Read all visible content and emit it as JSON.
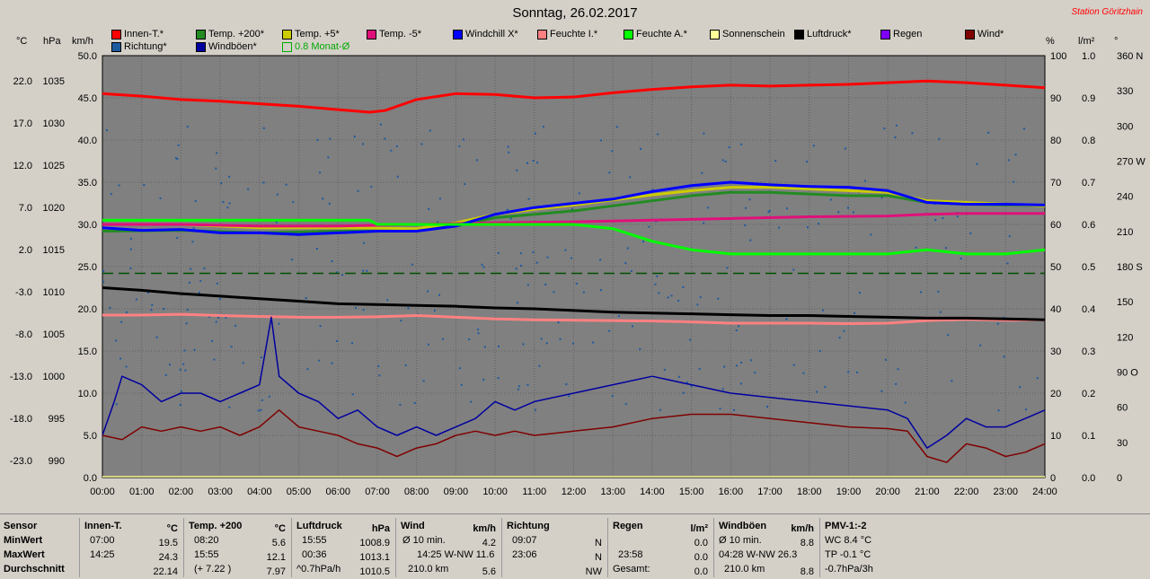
{
  "title": "Sonntag, 26.02.2017",
  "station": "Station Göritzhain",
  "units": {
    "c": "°C",
    "hpa": "hPa",
    "kmh": "km/h",
    "pct": "%",
    "lm2": "l/m²",
    "deg": "°"
  },
  "legend": [
    {
      "label": "Innen-T.*",
      "color": "#ff0000"
    },
    {
      "label": "Temp. +200*",
      "color": "#228b22"
    },
    {
      "label": "Temp. +5*",
      "color": "#cccc00"
    },
    {
      "label": "Temp. -5*",
      "color": "#e0107a"
    },
    {
      "label": "Windchill X*",
      "color": "#0000ff"
    },
    {
      "label": "Feuchte I.*",
      "color": "#ff8080"
    },
    {
      "label": "Feuchte A.*",
      "color": "#00ff00"
    },
    {
      "label": "Sonnenschein",
      "color": "#ffff99"
    },
    {
      "label": "Luftdruck*",
      "color": "#000000"
    },
    {
      "label": "Regen",
      "color": "#8000ff"
    },
    {
      "label": "Wind*",
      "color": "#800000"
    },
    {
      "label": "Richtung*",
      "color": "#1e5aa0"
    },
    {
      "label": "Windböen*",
      "color": "#0000a0"
    },
    {
      "label": "0.8 Monat-Ø",
      "color": "#00aa00"
    }
  ],
  "chart_data": {
    "type": "line",
    "title": "Sonntag, 26.02.2017",
    "x_ticks": [
      "00:00",
      "01:00",
      "02:00",
      "03:00",
      "04:00",
      "05:00",
      "06:00",
      "07:00",
      "08:00",
      "09:00",
      "10:00",
      "11:00",
      "12:00",
      "13:00",
      "14:00",
      "15:00",
      "16:00",
      "17:00",
      "18:00",
      "19:00",
      "20:00",
      "21:00",
      "22:00",
      "23:00",
      "24:00"
    ],
    "axes": {
      "temp_c": {
        "ticks": [
          "22.0",
          "17.0",
          "12.0",
          "7.0",
          "2.0",
          "-3.0",
          "-8.0",
          "-13.0",
          "-18.0",
          "-23.0"
        ],
        "range": [
          -23,
          27
        ]
      },
      "pressure_hpa": {
        "ticks": [
          "1035",
          "1030",
          "1025",
          "1020",
          "1015",
          "1010",
          "1005",
          "1000",
          "995",
          "990"
        ],
        "range": [
          990,
          1040
        ]
      },
      "wind_kmh": {
        "ticks": [
          "50.0",
          "45.0",
          "40.0",
          "35.0",
          "30.0",
          "25.0",
          "20.0",
          "15.0",
          "10.0",
          "5.0",
          "0.0"
        ],
        "range": [
          0,
          50
        ]
      },
      "humidity_pct": {
        "ticks": [
          "100",
          "90",
          "80",
          "70",
          "60",
          "50",
          "40",
          "30",
          "20",
          "10",
          "0"
        ],
        "range": [
          0,
          100
        ]
      },
      "rain_lm2": {
        "ticks": [
          "1.0",
          "0.9",
          "0.8",
          "0.7",
          "0.6",
          "0.5",
          "0.4",
          "0.3",
          "0.2",
          "0.1",
          "0.0"
        ],
        "range": [
          0,
          1
        ]
      },
      "direction_deg": {
        "ticks": [
          "360 N",
          "330",
          "300",
          "270 W",
          "240",
          "210",
          "180 S",
          "150",
          "120",
          "90 O",
          "60",
          "30",
          "0"
        ],
        "range": [
          0,
          360
        ]
      }
    },
    "series": [
      {
        "name": "Innen-T.*",
        "axis": "wind_kmh",
        "color": "#ff0000",
        "x": [
          0,
          1,
          2,
          3,
          4,
          5,
          6,
          6.8,
          7.2,
          8,
          9,
          10,
          11,
          12,
          13,
          14,
          15,
          16,
          17,
          18,
          19,
          20,
          21,
          22,
          23,
          24
        ],
        "y": [
          45.5,
          45.2,
          44.8,
          44.6,
          44.3,
          44.0,
          43.6,
          43.3,
          43.5,
          44.8,
          45.5,
          45.4,
          45.0,
          45.1,
          45.6,
          46.0,
          46.3,
          46.5,
          46.4,
          46.5,
          46.6,
          46.8,
          47.0,
          46.8,
          46.5,
          46.2
        ]
      },
      {
        "name": "Temp. +200*",
        "axis": "wind_kmh",
        "color": "#228b22",
        "x": [
          0,
          2,
          4,
          6,
          8,
          9,
          10,
          11,
          12,
          13,
          14,
          15,
          16,
          17,
          18,
          19,
          20,
          21,
          22,
          23,
          24
        ],
        "y": [
          29.2,
          29.3,
          29.0,
          29.2,
          29.3,
          29.8,
          30.8,
          31.2,
          31.6,
          32.2,
          32.8,
          33.4,
          33.8,
          33.8,
          33.6,
          33.4,
          33.4,
          32.6,
          32.4,
          32.3,
          32.2
        ]
      },
      {
        "name": "Temp. +5*",
        "axis": "wind_kmh",
        "color": "#cccc00",
        "x": [
          0,
          2,
          4,
          6,
          8,
          9,
          10,
          11,
          12,
          13,
          14,
          15,
          16,
          17,
          18,
          19,
          20,
          21,
          22,
          23,
          24
        ],
        "y": [
          30.0,
          30.0,
          29.6,
          29.6,
          29.5,
          30.2,
          31.2,
          31.8,
          32.3,
          32.9,
          33.5,
          34.0,
          34.4,
          34.4,
          34.2,
          34.0,
          33.8,
          32.8,
          32.6,
          32.4,
          32.2
        ]
      },
      {
        "name": "Temp. -5*",
        "axis": "wind_kmh",
        "color": "#e0107a",
        "x": [
          0,
          2,
          4,
          6,
          8,
          10,
          12,
          14,
          16,
          18,
          20,
          21,
          22,
          23,
          24
        ],
        "y": [
          30.0,
          30.0,
          29.8,
          29.8,
          30.0,
          30.2,
          30.3,
          30.5,
          30.7,
          30.9,
          31.0,
          31.2,
          31.3,
          31.3,
          31.3
        ]
      },
      {
        "name": "Windchill X*",
        "axis": "wind_kmh",
        "color": "#0000ff",
        "x": [
          0,
          1,
          2,
          3,
          4,
          5,
          6,
          7,
          8,
          9,
          10,
          11,
          12,
          13,
          14,
          15,
          16,
          17,
          18,
          19,
          20,
          21,
          22,
          23,
          24
        ],
        "y": [
          29.6,
          29.3,
          29.4,
          29.0,
          29.0,
          28.8,
          29.0,
          29.2,
          29.2,
          29.8,
          31.2,
          32.0,
          32.5,
          33.0,
          33.9,
          34.6,
          35.0,
          34.7,
          34.5,
          34.4,
          34.0,
          32.6,
          32.4,
          32.4,
          32.3
        ]
      },
      {
        "name": "Feuchte I.*",
        "axis": "humidity_pct",
        "color": "#ff8080",
        "x": [
          0,
          1,
          2,
          3,
          4,
          5,
          6,
          7,
          8,
          9,
          10,
          11,
          12,
          13,
          14,
          15,
          16,
          17,
          18,
          19,
          20,
          21,
          22,
          23,
          24
        ],
        "y": [
          38.5,
          38.5,
          38.7,
          38.4,
          38.2,
          38.0,
          38.0,
          38.1,
          38.4,
          38.0,
          37.6,
          37.4,
          37.3,
          37.2,
          37.1,
          36.9,
          36.6,
          36.6,
          36.6,
          36.5,
          36.6,
          37.2,
          37.5,
          37.3,
          37.4
        ]
      },
      {
        "name": "Feuchte A.*",
        "axis": "humidity_pct",
        "color": "#00ff00",
        "x": [
          0,
          1,
          2,
          3,
          4,
          5,
          6,
          6.8,
          7,
          8,
          9,
          10,
          11,
          12,
          13,
          14,
          15,
          16,
          17,
          18,
          19,
          20,
          21,
          22,
          23,
          24
        ],
        "y": [
          61,
          61,
          61,
          61,
          61,
          61,
          61,
          61,
          60,
          60,
          60,
          60,
          60,
          60,
          59,
          56,
          54,
          53,
          53,
          53,
          53,
          53,
          54,
          53,
          53,
          54
        ]
      },
      {
        "name": "Luftdruck*",
        "axis": "pressure_hpa",
        "color": "#000000",
        "x": [
          0,
          1,
          2,
          3,
          4,
          5,
          6,
          7,
          8,
          9,
          10,
          11,
          12,
          13,
          14,
          15,
          16,
          17,
          18,
          19,
          20,
          21,
          22,
          23,
          24
        ],
        "y": [
          1012.5,
          1012.2,
          1011.8,
          1011.5,
          1011.2,
          1010.9,
          1010.6,
          1010.5,
          1010.4,
          1010.3,
          1010.1,
          1010.0,
          1009.8,
          1009.6,
          1009.5,
          1009.4,
          1009.3,
          1009.2,
          1009.2,
          1009.1,
          1009.0,
          1008.9,
          1008.9,
          1008.8,
          1008.7
        ]
      },
      {
        "name": "Windböen*",
        "axis": "wind_kmh",
        "color": "#0000a0",
        "x": [
          0,
          0.3,
          0.5,
          1,
          1.5,
          2,
          2.5,
          3,
          3.5,
          4,
          4.3,
          4.5,
          5,
          5.5,
          6,
          6.5,
          7,
          7.5,
          8,
          8.5,
          9,
          9.5,
          10,
          10.5,
          11,
          12,
          13,
          14,
          15,
          16,
          17,
          18,
          19,
          20,
          20.5,
          21,
          21.5,
          22,
          22.5,
          23,
          23.5,
          24
        ],
        "y": [
          5,
          9,
          12,
          11,
          9,
          10,
          10,
          9,
          10,
          11,
          19,
          12,
          10,
          9,
          7,
          8,
          6,
          5,
          6,
          5,
          6,
          7,
          9,
          8,
          9,
          10,
          11,
          12,
          11,
          10,
          9.5,
          9,
          8.5,
          8,
          7,
          3.5,
          5,
          7,
          6,
          6,
          7,
          8
        ]
      },
      {
        "name": "Wind*",
        "axis": "wind_kmh",
        "color": "#800000",
        "x": [
          0,
          0.5,
          1,
          1.5,
          2,
          2.5,
          3,
          3.5,
          4,
          4.5,
          5,
          5.5,
          6,
          6.5,
          7,
          7.5,
          8,
          8.5,
          9,
          9.5,
          10,
          10.5,
          11,
          12,
          13,
          14,
          15,
          16,
          17,
          18,
          19,
          20,
          20.5,
          21,
          21.5,
          22,
          22.5,
          23,
          23.5,
          24
        ],
        "y": [
          5,
          4.5,
          6,
          5.5,
          6,
          5.5,
          6,
          5,
          6,
          8,
          6,
          5.5,
          5,
          4,
          3.5,
          2.5,
          3.5,
          4,
          5,
          5.5,
          5,
          5.5,
          5,
          5.5,
          6,
          7,
          7.5,
          7.5,
          7,
          6.5,
          6,
          5.8,
          5.5,
          2.5,
          1.8,
          4,
          3.5,
          2.5,
          3,
          4
        ]
      },
      {
        "name": "0.8 Monat-Ø",
        "axis": "wind_kmh",
        "color": "#005000",
        "dashed": true,
        "x": [
          0,
          24
        ],
        "y": [
          24.2,
          24.2
        ]
      }
    ]
  },
  "table": {
    "rows": [
      "Sensor",
      "MinWert",
      "MaxWert",
      "Durchschnitt"
    ],
    "innen": {
      "head": "Innen-T.",
      "unit": "°C",
      "min_t": "07:00",
      "min_v": "19.5",
      "max_t": "14:25",
      "max_v": "24.3",
      "avg": "22.14"
    },
    "temp200": {
      "head": "Temp. +200",
      "unit": "°C",
      "min_t": "08:20",
      "min_v": "5.6",
      "max_t": "15:55",
      "max_v": "12.1",
      "avg_t": "(+ 7.22 )",
      "avg": "7.97"
    },
    "druck": {
      "head": "Luftdruck",
      "unit": "hPa",
      "min_t": "15:55",
      "min_v": "1008.9",
      "max_t": "00:36",
      "max_v": "1013.1",
      "avg_t": "^0.7hPa/h",
      "avg": "1010.5"
    },
    "wind": {
      "head": "Wind",
      "unit": "km/h",
      "min_t": "Ø 10 min.",
      "min_v": "4.2",
      "max_t": "14:25    W-NW 11.6",
      "max_v": "",
      "avg_t": "210.0 km",
      "avg": "5.6"
    },
    "richtung": {
      "head": "Richtung",
      "min_t": "09:07",
      "min_v": "N",
      "max_t": "23:06",
      "max_v": "N",
      "avg": "NW"
    },
    "regen": {
      "head": "Regen",
      "unit": "l/m²",
      "min_v": "0.0",
      "max_t": "23:58",
      "max_v": "0.0",
      "avg_t": "Gesamt:",
      "avg": "0.0"
    },
    "boeen": {
      "head": "Windböen",
      "unit": "km/h",
      "min_t": "Ø 10 min.",
      "min_v": "8.8",
      "max_t": "04:28    W-NW 26.3",
      "avg_t": "210.0 km",
      "avg": "8.8"
    },
    "pmv": {
      "head": "PMV-1:-2",
      "min": "WC 8.4 °C",
      "max": "TP -0.1 °C",
      "avg": "-0.7hPa/3h"
    }
  }
}
